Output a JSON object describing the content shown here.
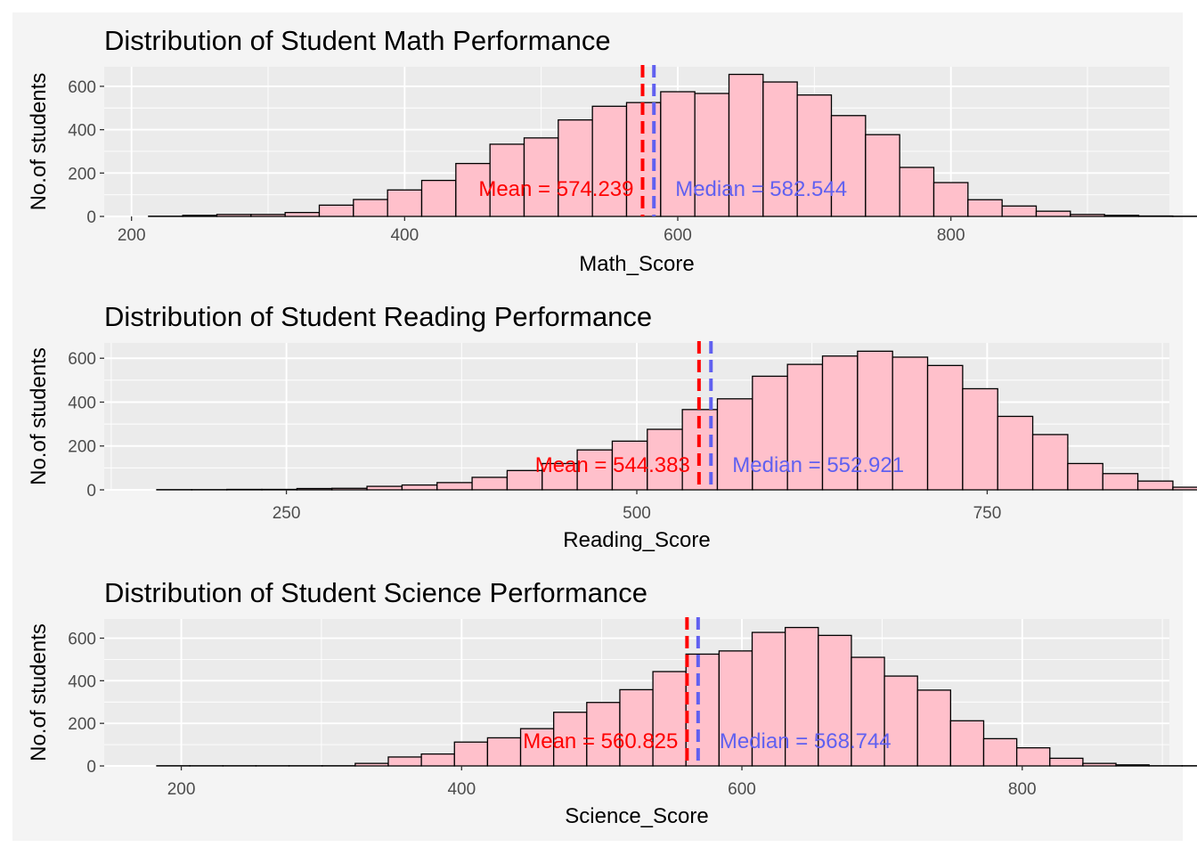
{
  "colors": {
    "panel_bg": "#ebebeb",
    "grid": "#ffffff",
    "bar_fill": "#ffc0cb",
    "bar_stroke": "#000000",
    "mean_color": "#ff0000",
    "median_color": "#6060f0"
  },
  "chart_data": [
    {
      "type": "bar",
      "title": "Distribution of Student Math Performance",
      "xlabel": "Math_Score",
      "ylabel": "No.of students",
      "xlim": [
        180,
        960
      ],
      "ylim": [
        0,
        690
      ],
      "xticks": [
        200,
        400,
        600,
        800
      ],
      "yticks": [
        0,
        200,
        400,
        600
      ],
      "grid": true,
      "bins": {
        "start": 212.5,
        "width": 25,
        "counts": [
          1,
          5,
          9,
          9,
          18,
          52,
          78,
          122,
          166,
          244,
          333,
          362,
          445,
          508,
          525,
          575,
          567,
          655,
          620,
          560,
          465,
          377,
          226,
          156,
          77,
          48,
          24,
          9,
          5,
          2,
          1,
          1,
          1,
          1,
          1,
          1
        ]
      },
      "mean": {
        "value": 574.239,
        "label": "Mean = 574.239"
      },
      "median": {
        "value": 582.544,
        "label": "Median = 582.544"
      }
    },
    {
      "type": "bar",
      "title": "Distribution of Student Reading Performance",
      "xlabel": "Reading_Score",
      "ylabel": "No.of students",
      "xlim": [
        120,
        880
      ],
      "ylim": [
        0,
        670
      ],
      "xticks": [
        250,
        500,
        750
      ],
      "xtick_labels": [
        "250",
        "500",
        "750"
      ],
      "yticks": [
        0,
        200,
        400,
        600
      ],
      "grid": true,
      "bins": {
        "start": 157.5,
        "width": 25,
        "counts": [
          1,
          1,
          2,
          2,
          6,
          7,
          16,
          22,
          33,
          57,
          88,
          120,
          182,
          222,
          276,
          366,
          415,
          518,
          572,
          610,
          632,
          605,
          567,
          461,
          335,
          252,
          120,
          74,
          40,
          12,
          2,
          1,
          1,
          1,
          1,
          1,
          1
        ]
      },
      "mean": {
        "value": 544.383,
        "label": "Mean = 544.383"
      },
      "median": {
        "value": 552.921,
        "label": "Median = 552.921"
      }
    },
    {
      "type": "bar",
      "title": "Distribution of Student Science Performance",
      "xlabel": "Science_Score",
      "ylabel": "No.of students",
      "xlim": [
        145,
        905
      ],
      "ylim": [
        0,
        690
      ],
      "xticks": [
        200,
        400,
        600,
        800
      ],
      "yticks": [
        0,
        200,
        400,
        600
      ],
      "grid": true,
      "bins": {
        "start": 182.5,
        "width": 23.6,
        "counts": [
          1,
          1,
          1,
          1,
          1,
          1,
          12,
          42,
          56,
          112,
          132,
          175,
          252,
          298,
          358,
          443,
          525,
          540,
          627,
          650,
          613,
          510,
          422,
          356,
          212,
          128,
          85,
          36,
          12,
          5,
          1,
          1,
          1,
          1,
          1,
          1
        ]
      },
      "mean": {
        "value": 560.825,
        "label": "Mean = 560.825"
      },
      "median": {
        "value": 568.744,
        "label": "Median = 568.744"
      }
    }
  ]
}
